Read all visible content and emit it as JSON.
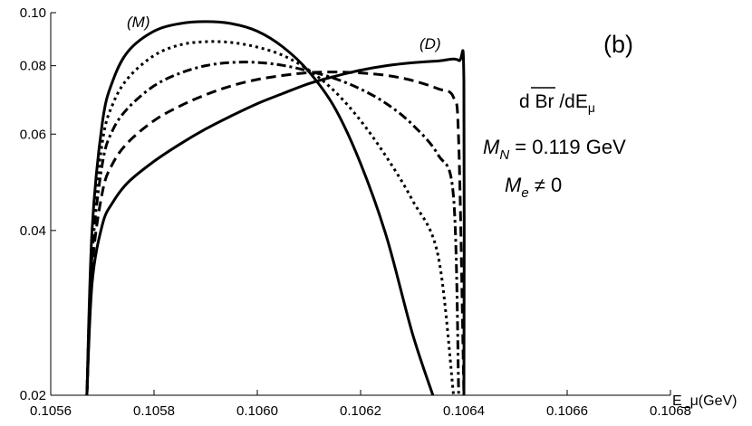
{
  "chart_data": {
    "type": "line",
    "title": "",
    "xlabel": "E_μ(GeV)",
    "ylabel": "",
    "xlim": [
      0.1056,
      0.1068
    ],
    "ylim": [
      0.02,
      0.1
    ],
    "yscale": "log",
    "x_ticks": [
      {
        "value": 0.1056,
        "label": "0.1056"
      },
      {
        "value": 0.1058,
        "label": "0.1058"
      },
      {
        "value": 0.106,
        "label": "0.1060"
      },
      {
        "value": 0.1062,
        "label": "0.1062"
      },
      {
        "value": 0.1064,
        "label": "0.1064"
      },
      {
        "value": 0.1066,
        "label": "0.1066"
      },
      {
        "value": 0.1068,
        "label": "0.1068"
      }
    ],
    "y_ticks": [
      {
        "value": 0.02,
        "label": "0.02"
      },
      {
        "value": 0.04,
        "label": "0.04"
      },
      {
        "value": 0.06,
        "label": "0.06"
      },
      {
        "value": 0.08,
        "label": "0.08"
      },
      {
        "value": 0.1,
        "label": "0.10"
      }
    ],
    "annotations": {
      "panel": "(b)",
      "quantity": "d Br /dE",
      "quantity_sub": "μ",
      "mass_n": "M",
      "mass_n_sub": "N",
      "mass_n_value": " = 0.119 GeV",
      "mass_e": "M",
      "mass_e_sub": "e",
      "mass_e_value": " ≠ 0",
      "curve_m": "(M)",
      "curve_d": "(D)"
    },
    "series": [
      {
        "style": "solid",
        "x": [
          0.10567,
          0.10568,
          0.1057,
          0.10572,
          0.10575,
          0.1058,
          0.10585,
          0.1059,
          0.10595,
          0.106,
          0.10605,
          0.1061,
          0.10615,
          0.1062,
          0.10625,
          0.1063,
          0.10634
        ],
        "y": [
          0.02,
          0.04,
          0.063,
          0.075,
          0.085,
          0.0925,
          0.0955,
          0.0963,
          0.0955,
          0.0925,
          0.0865,
          0.078,
          0.067,
          0.053,
          0.039,
          0.026,
          0.02
        ]
      },
      {
        "style": "dotted",
        "x": [
          0.10567,
          0.10568,
          0.1057,
          0.10572,
          0.10575,
          0.1058,
          0.10585,
          0.1059,
          0.10595,
          0.106,
          0.10605,
          0.1061,
          0.10615,
          0.1062,
          0.10625,
          0.1063,
          0.10635,
          0.10638
        ],
        "y": [
          0.02,
          0.038,
          0.058,
          0.068,
          0.076,
          0.0835,
          0.0873,
          0.0885,
          0.0882,
          0.0865,
          0.0835,
          0.0785,
          0.0718,
          0.0635,
          0.0545,
          0.0455,
          0.036,
          0.02
        ]
      },
      {
        "style": "dashdot",
        "x": [
          0.10567,
          0.10568,
          0.1057,
          0.10572,
          0.10575,
          0.1058,
          0.10585,
          0.1059,
          0.10595,
          0.106,
          0.10605,
          0.1061,
          0.10615,
          0.1062,
          0.10625,
          0.1063,
          0.10635,
          0.10638,
          0.10639
        ],
        "y": [
          0.02,
          0.036,
          0.053,
          0.061,
          0.067,
          0.0735,
          0.0775,
          0.08,
          0.0811,
          0.0811,
          0.0801,
          0.0782,
          0.0758,
          0.0725,
          0.0682,
          0.0625,
          0.055,
          0.046,
          0.02
        ]
      },
      {
        "style": "dashed",
        "x": [
          0.10567,
          0.10568,
          0.1057,
          0.10572,
          0.10575,
          0.1058,
          0.10585,
          0.1059,
          0.10595,
          0.106,
          0.10605,
          0.1061,
          0.10615,
          0.1062,
          0.10625,
          0.1063,
          0.10635,
          0.10638,
          0.10639,
          0.1064
        ],
        "y": [
          0.02,
          0.034,
          0.047,
          0.053,
          0.058,
          0.0635,
          0.0675,
          0.0708,
          0.0735,
          0.0755,
          0.0768,
          0.0777,
          0.0779,
          0.0776,
          0.0768,
          0.0752,
          0.0726,
          0.07,
          0.058,
          0.02
        ]
      },
      {
        "style": "solid",
        "x": [
          0.10567,
          0.10568,
          0.1057,
          0.10572,
          0.10575,
          0.1058,
          0.10585,
          0.1059,
          0.10595,
          0.106,
          0.10605,
          0.1061,
          0.10615,
          0.1062,
          0.10625,
          0.1063,
          0.10635,
          0.10639,
          0.1064,
          0.1064
        ],
        "y": [
          0.02,
          0.032,
          0.041,
          0.045,
          0.049,
          0.0535,
          0.0575,
          0.0613,
          0.0648,
          0.0682,
          0.0712,
          0.0742,
          0.0765,
          0.0785,
          0.08,
          0.081,
          0.0816,
          0.0818,
          0.075,
          0.02
        ]
      }
    ]
  }
}
